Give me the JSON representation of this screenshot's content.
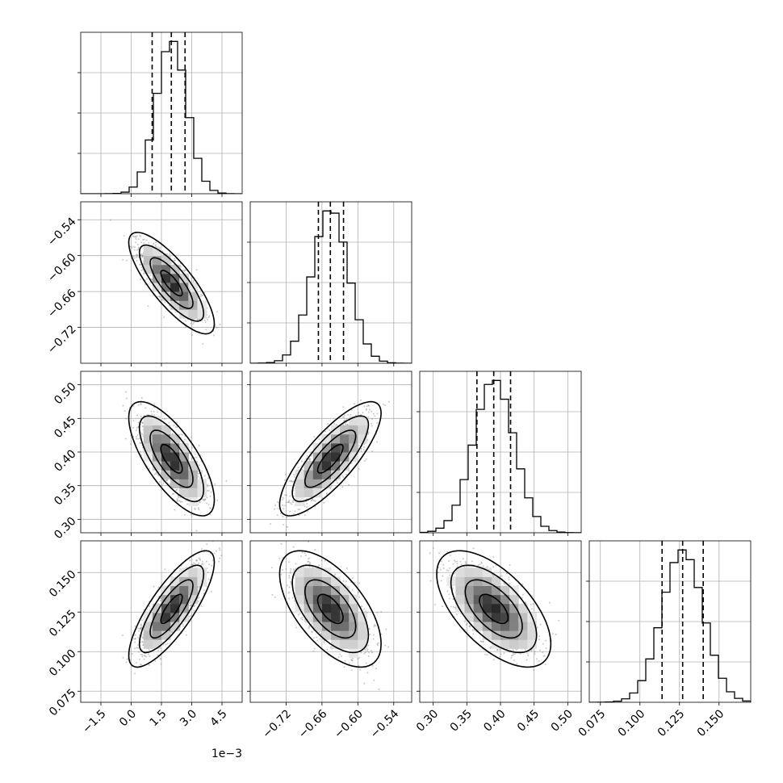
{
  "chart_data": {
    "type": "corner",
    "title": "",
    "grid": true,
    "parameters": [
      {
        "name": "",
        "range": [
          -2.5,
          5.5
        ],
        "mean": 0.002,
        "sd": 0.00075,
        "quantiles": [
          0.00104,
          0.00199,
          0.00267
        ],
        "ticks": [
          -1.5,
          0.0,
          1.5,
          3.0,
          4.5
        ],
        "tick_labels": [
          "−1.5",
          "0.0",
          "1.5",
          "3.0",
          "4.5"
        ],
        "scale": 0.001,
        "offset_text": "1e−3",
        "hist_bins": 20
      },
      {
        "name": "",
        "range": [
          -0.78,
          -0.51
        ],
        "mean": -0.646,
        "sd": 0.03,
        "quantiles": [
          -0.666,
          -0.646,
          -0.624
        ],
        "ticks": [
          -0.72,
          -0.66,
          -0.6,
          -0.54
        ],
        "tick_labels": [
          "−0.72",
          "−0.66",
          "−0.60",
          "−0.54"
        ],
        "scale": 1,
        "offset_text": "",
        "hist_bins": 20
      },
      {
        "name": "",
        "range": [
          0.28,
          0.52
        ],
        "mean": 0.39,
        "sd": 0.03,
        "quantiles": [
          0.365,
          0.39,
          0.415
        ],
        "ticks": [
          0.3,
          0.35,
          0.4,
          0.45,
          0.5
        ],
        "tick_labels": [
          "0.30",
          "0.35",
          "0.40",
          "0.45",
          "0.50"
        ],
        "scale": 1,
        "offset_text": "",
        "hist_bins": 20
      },
      {
        "name": "",
        "range": [
          0.068,
          0.17
        ],
        "mean": 0.127,
        "sd": 0.013,
        "quantiles": [
          0.114,
          0.127,
          0.14
        ],
        "ticks": [
          0.075,
          0.1,
          0.125,
          0.15
        ],
        "tick_labels": [
          "0.075",
          "0.100",
          "0.125",
          "0.150"
        ],
        "scale": 1,
        "offset_text": "",
        "hist_bins": 20
      }
    ],
    "correlations": [
      [
        1.0,
        -0.8,
        -0.72,
        0.8
      ],
      [
        -0.8,
        1.0,
        0.8,
        -0.6
      ],
      [
        -0.72,
        0.8,
        1.0,
        -0.6
      ],
      [
        0.8,
        -0.6,
        -0.6,
        1.0
      ]
    ],
    "contour_levels_sigma": [
      0.5,
      1.0,
      1.5,
      2.0
    ],
    "colors": {
      "points": "#888888",
      "line": "#000000",
      "grid": "#b0b0b0"
    }
  }
}
